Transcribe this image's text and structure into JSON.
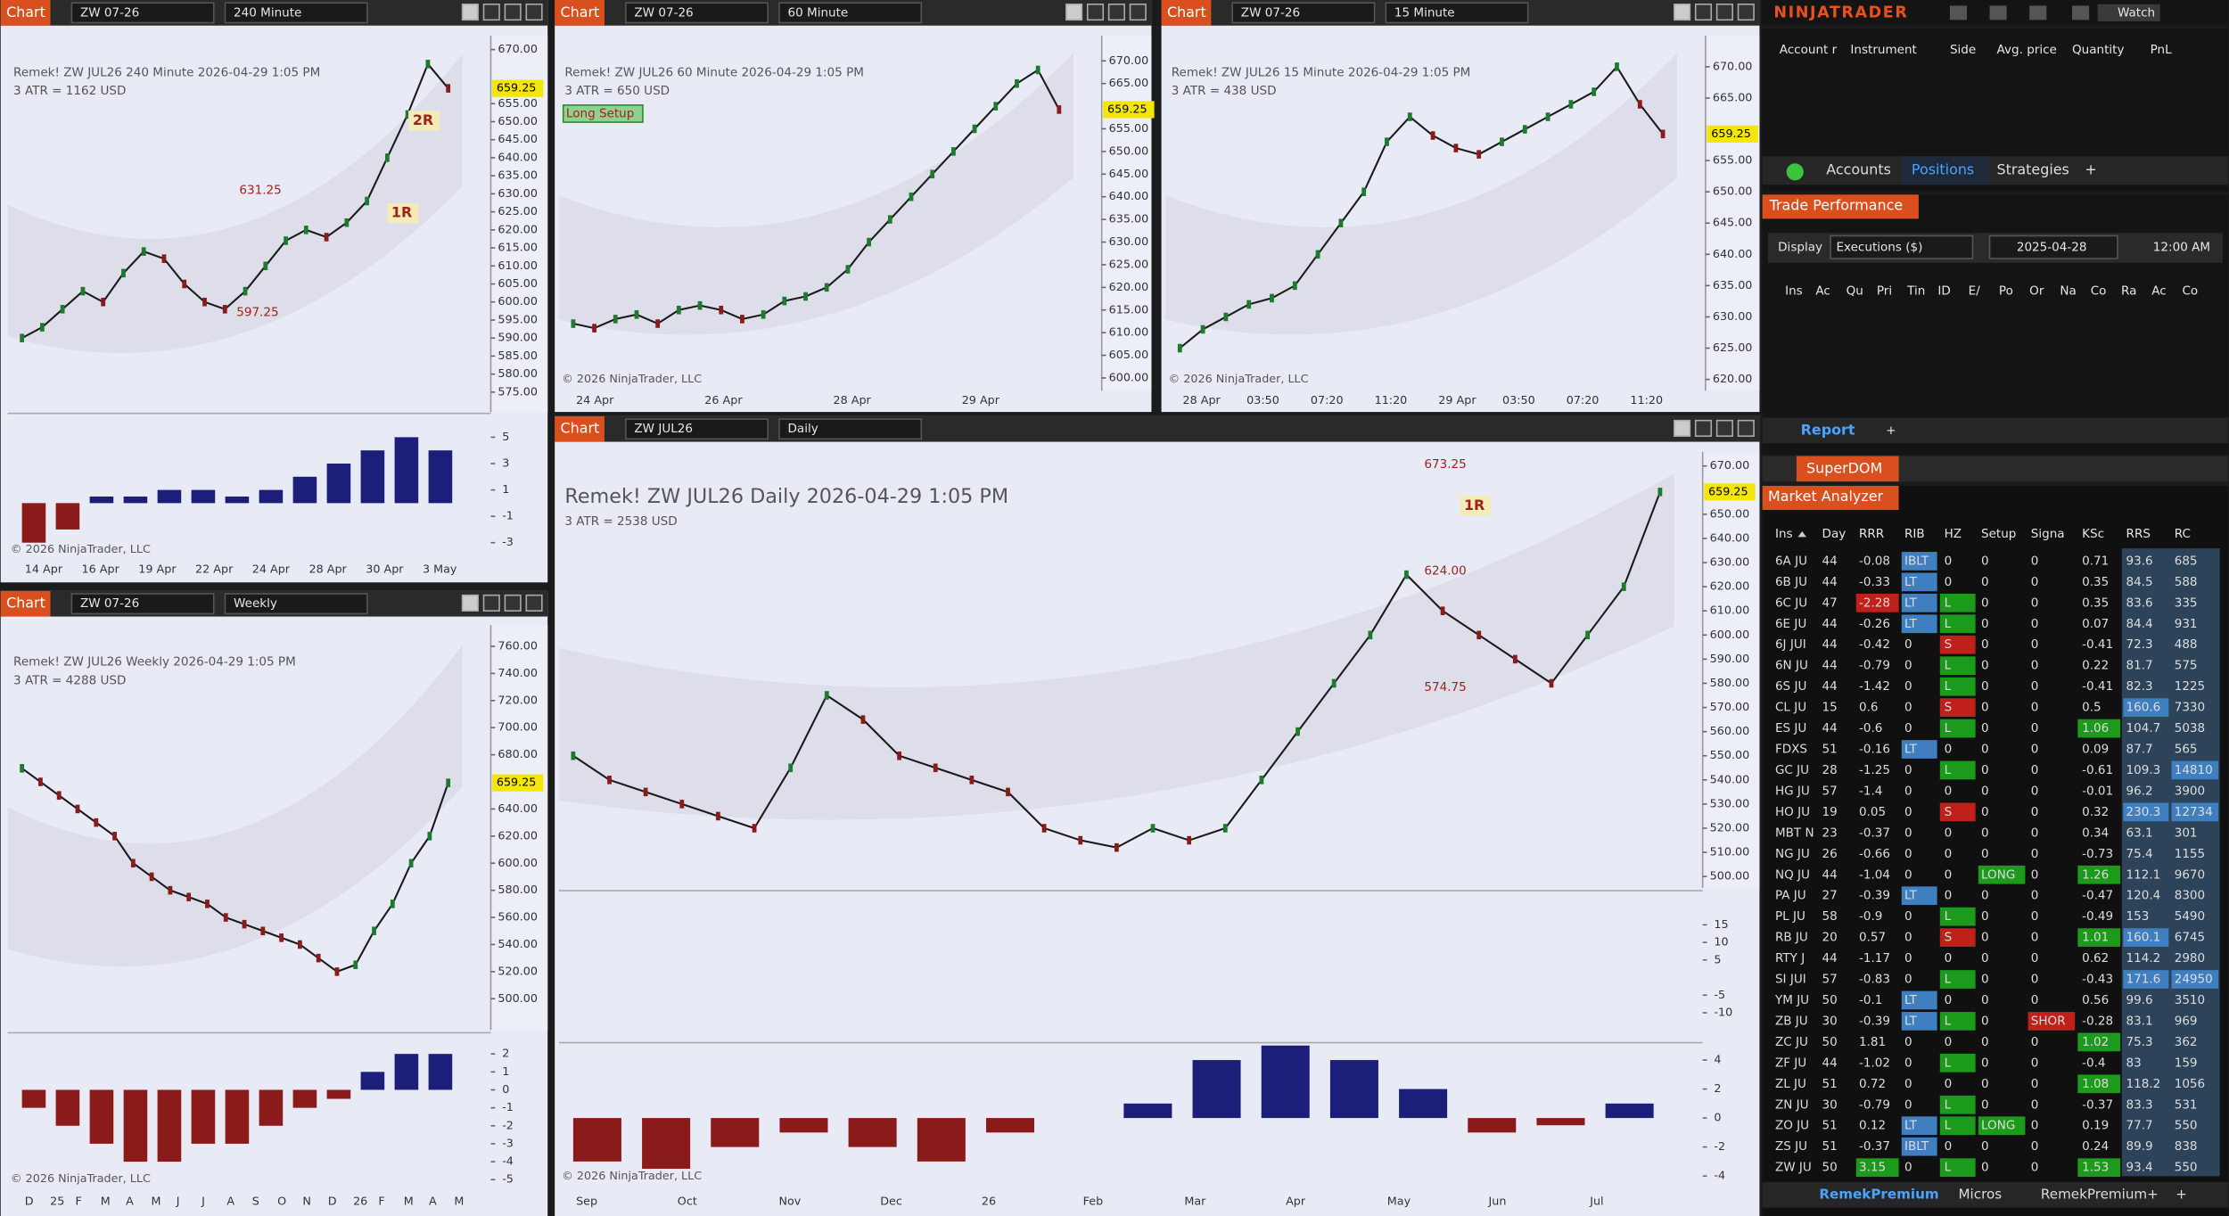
{
  "top_bar": {
    "brand": "NINJATRADER",
    "watch": "Watch"
  },
  "charts": [
    {
      "header": {
        "label": "Chart",
        "instrument": "ZW 07-26",
        "interval": "240 Minute"
      },
      "title": "Remek!  ZW JUL26  240 Minute  2026-04-29 1:05 PM",
      "atr": "3 ATR = 1162 USD",
      "copyright": "© 2026 NinjaTrader, LLC",
      "ylim": [
        569.5,
        673.9
      ],
      "yticks": [
        {
          "value": 670,
          "label": "670.00"
        },
        {
          "value": 655,
          "label": "655.00"
        },
        {
          "value": 650,
          "label": "650.00"
        },
        {
          "value": 645,
          "label": "645.00"
        },
        {
          "value": 640,
          "label": "640.00"
        },
        {
          "value": 635,
          "label": "635.00"
        },
        {
          "value": 630,
          "label": "630.00"
        },
        {
          "value": 625,
          "label": "625.00"
        },
        {
          "value": 620,
          "label": "620.00"
        },
        {
          "value": 615,
          "label": "615.00"
        },
        {
          "value": 610,
          "label": "610.00"
        },
        {
          "value": 605,
          "label": "605.00"
        },
        {
          "value": 600,
          "label": "600.00"
        },
        {
          "value": 595,
          "label": "595.00"
        },
        {
          "value": 590,
          "label": "590.00"
        },
        {
          "value": 585,
          "label": "585.00"
        },
        {
          "value": 580,
          "label": "580.00"
        },
        {
          "value": 575,
          "label": "575.00"
        }
      ],
      "last_price": {
        "value": 659.25,
        "label": "659.25"
      },
      "closes": [
        590,
        593,
        598,
        603,
        600,
        608,
        614,
        612,
        605,
        600,
        598,
        603,
        610,
        617,
        620,
        618,
        622,
        628,
        640,
        652,
        666,
        659.25
      ],
      "time_labels": [
        "14 Apr",
        "16 Apr",
        "19 Apr",
        "22 Apr",
        "24 Apr",
        "28 Apr",
        "30 Apr",
        "3 May"
      ],
      "annotations": [
        "2R",
        "1R",
        "631.25",
        "597.25"
      ],
      "indicator_ylim": [
        -4.4,
        6.7
      ],
      "indicator_ticks": [
        5,
        3,
        1,
        -1,
        -3
      ],
      "indicator_values": [
        -3,
        -2,
        0.5,
        0.5,
        1,
        1,
        0.5,
        1,
        2,
        3,
        4,
        5,
        4
      ]
    },
    {
      "header": {
        "label": "Chart",
        "instrument": "ZW 07-26",
        "interval": "60 Minute"
      },
      "title": "Remek!  ZW JUL26  60 Minute  2026-04-29 1:05 PM",
      "atr": "3 ATR = 650 USD",
      "copyright": "© 2026 NinjaTrader, LLC",
      "ylim": [
        597.2,
        675.6
      ],
      "yticks": [
        {
          "value": 670,
          "label": "670.00"
        },
        {
          "value": 665,
          "label": "665.00"
        },
        {
          "value": 655,
          "label": "655.00"
        },
        {
          "value": 650,
          "label": "650.00"
        },
        {
          "value": 645,
          "label": "645.00"
        },
        {
          "value": 640,
          "label": "640.00"
        },
        {
          "value": 635,
          "label": "635.00"
        },
        {
          "value": 630,
          "label": "630.00"
        },
        {
          "value": 625,
          "label": "625.00"
        },
        {
          "value": 620,
          "label": "620.00"
        },
        {
          "value": 615,
          "label": "615.00"
        },
        {
          "value": 610,
          "label": "610.00"
        },
        {
          "value": 605,
          "label": "605.00"
        },
        {
          "value": 600,
          "label": "600.00"
        }
      ],
      "last_price": {
        "value": 659.25,
        "label": "659.25"
      },
      "closes": [
        612,
        611,
        613,
        614,
        612,
        615,
        616,
        615,
        613,
        614,
        617,
        618,
        620,
        624,
        630,
        635,
        640,
        645,
        650,
        655,
        660,
        665,
        668,
        659.25
      ],
      "time_labels": [
        "24 Apr",
        "26 Apr",
        "28 Apr",
        "29 Apr"
      ],
      "annotations": [
        "Long Setup"
      ]
    },
    {
      "header": {
        "label": "Chart",
        "instrument": "ZW 07-26",
        "interval": "15 Minute"
      },
      "title": "Remek!  ZW JUL26  15 Minute  2026-04-29 1:05 PM",
      "atr": "3 ATR = 438 USD",
      "copyright": "© 2026 NinjaTrader, LLC",
      "ylim": [
        618.2,
        675
      ],
      "yticks": [
        {
          "value": 670,
          "label": "670.00"
        },
        {
          "value": 665,
          "label": "665.00"
        },
        {
          "value": 655,
          "label": "655.00"
        },
        {
          "value": 650,
          "label": "650.00"
        },
        {
          "value": 645,
          "label": "645.00"
        },
        {
          "value": 640,
          "label": "640.00"
        },
        {
          "value": 635,
          "label": "635.00"
        },
        {
          "value": 630,
          "label": "630.00"
        },
        {
          "value": 625,
          "label": "625.00"
        },
        {
          "value": 620,
          "label": "620.00"
        }
      ],
      "last_price": {
        "value": 659.25,
        "label": "659.25"
      },
      "closes": [
        625,
        628,
        630,
        632,
        633,
        635,
        640,
        645,
        650,
        658,
        662,
        659,
        657,
        656,
        658,
        660,
        662,
        664,
        666,
        670,
        664,
        659.25
      ],
      "time_labels": [
        "28 Apr",
        "03:50",
        "07:20",
        "11:20",
        "29 Apr",
        "03:50",
        "07:20",
        "11:20"
      ],
      "annotations": []
    },
    {
      "header": {
        "label": "Chart",
        "instrument": "ZW 07-26",
        "interval": "Weekly"
      },
      "title": "Remek!  ZW JUL26  Weekly  2026-04-29 1:05 PM",
      "atr": "3 ATR = 4288 USD",
      "copyright": "© 2026 NinjaTrader, LLC",
      "ylim": [
        477,
        775.7
      ],
      "yticks": [
        {
          "value": 760,
          "label": "760.00"
        },
        {
          "value": 740,
          "label": "740.00"
        },
        {
          "value": 720,
          "label": "720.00"
        },
        {
          "value": 700,
          "label": "700.00"
        },
        {
          "value": 680,
          "label": "680.00"
        },
        {
          "value": 640,
          "label": "640.00"
        },
        {
          "value": 620,
          "label": "620.00"
        },
        {
          "value": 600,
          "label": "600.00"
        },
        {
          "value": 580,
          "label": "580.00"
        },
        {
          "value": 560,
          "label": "560.00"
        },
        {
          "value": 540,
          "label": "540.00"
        },
        {
          "value": 520,
          "label": "520.00"
        },
        {
          "value": 500,
          "label": "500.00"
        }
      ],
      "last_price": {
        "value": 659.25,
        "label": "659.25"
      },
      "closes": [
        670,
        660,
        650,
        640,
        630,
        620,
        600,
        590,
        580,
        575,
        570,
        560,
        555,
        550,
        545,
        540,
        530,
        520,
        525,
        550,
        570,
        600,
        620,
        659.25
      ],
      "time_labels": [
        "D",
        "25",
        "F",
        "M",
        "A",
        "M",
        "J",
        "J",
        "A",
        "S",
        "O",
        "N",
        "D",
        "26",
        "F",
        "M",
        "A",
        "M"
      ],
      "annotations": [],
      "indicator_ylim": [
        -5.6,
        3.1
      ],
      "indicator_ticks": [
        2,
        1,
        0,
        -1,
        -2,
        -3,
        -4,
        -5
      ],
      "indicator_values": [
        -1,
        -2,
        -3,
        -4,
        -4,
        -3,
        -3,
        -2,
        -1,
        -0.5,
        1,
        2,
        2
      ]
    },
    {
      "header": {
        "label": "Chart",
        "instrument": "ZW JUL26",
        "interval": "Daily"
      },
      "title": "Remek!  ZW JUL26  Daily  2026-04-29 1:05 PM",
      "atr": "3 ATR = 2538 USD",
      "copyright": "© 2026 NinjaTrader, LLC",
      "ylim": [
        495.3,
        675.9
      ],
      "yticks": [
        {
          "value": 670,
          "label": "670.00"
        },
        {
          "value": 650,
          "label": "650.00"
        },
        {
          "value": 640,
          "label": "640.00"
        },
        {
          "value": 630,
          "label": "630.00"
        },
        {
          "value": 620,
          "label": "620.00"
        },
        {
          "value": 610,
          "label": "610.00"
        },
        {
          "value": 600,
          "label": "600.00"
        },
        {
          "value": 590,
          "label": "590.00"
        },
        {
          "value": 580,
          "label": "580.00"
        },
        {
          "value": 570,
          "label": "570.00"
        },
        {
          "value": 560,
          "label": "560.00"
        },
        {
          "value": 550,
          "label": "550.00"
        },
        {
          "value": 540,
          "label": "540.00"
        },
        {
          "value": 530,
          "label": "530.00"
        },
        {
          "value": 520,
          "label": "520.00"
        },
        {
          "value": 510,
          "label": "510.00"
        },
        {
          "value": 500,
          "label": "500.00"
        }
      ],
      "last_price": {
        "value": 659.25,
        "label": "659.25"
      },
      "closes": [
        550,
        540,
        535,
        530,
        525,
        520,
        545,
        575,
        565,
        550,
        545,
        540,
        535,
        520,
        515,
        512,
        520,
        515,
        520,
        540,
        560,
        580,
        600,
        625,
        610,
        600,
        590,
        580,
        600,
        620,
        659.25
      ],
      "time_labels": [
        "Sep",
        "Oct",
        "Nov",
        "Dec",
        "26",
        "Feb",
        "Mar",
        "Apr",
        "May",
        "Jun",
        "Jul"
      ],
      "annotations": [
        "673.25",
        "1R",
        "624.00",
        "574.75"
      ],
      "indicator_ylim": [
        -4.8,
        5.1
      ],
      "indicator_ticks": [
        4,
        2,
        0,
        -2,
        -4
      ],
      "indicator_values": [
        -3,
        -3.5,
        -2,
        -1,
        -2,
        -3,
        -1,
        0,
        1,
        4,
        5,
        4,
        2,
        -1,
        -0.5,
        1
      ],
      "oscillator_ylim": [
        -17.7,
        24.3
      ],
      "oscillator_ticks": [
        15,
        10,
        5,
        -5,
        -10
      ]
    }
  ],
  "positions": {
    "columns": [
      "Account r",
      "Instrument",
      "Side",
      "Avg. price",
      "Quantity",
      "PnL"
    ],
    "tabs": [
      "Accounts",
      "Positions",
      "Strategies",
      "+"
    ]
  },
  "trade_performance": {
    "title": "Trade Performance",
    "display_label": "Display",
    "display": "Executions ($)",
    "date": "2025-04-28",
    "time": "12:00 AM",
    "columns": [
      "Ins",
      "Ac",
      "Qu",
      "Pri",
      "Tin",
      "ID",
      "E/",
      "Po",
      "Or",
      "Na",
      "Co",
      "Ra",
      "Ac",
      "Co"
    ],
    "tabs": [
      "Report",
      "+"
    ]
  },
  "superdom": {
    "title": "SuperDOM"
  },
  "market_analyzer": {
    "title": "Market Analyzer",
    "columns": [
      "Ins",
      "Day",
      "RRR",
      "RIB",
      "HZ",
      "Setup",
      "Signa",
      "KSc",
      "RRS",
      "RC"
    ],
    "rows": [
      [
        "6A JU",
        "44",
        "-0.08",
        "IBLT",
        "0",
        "0",
        "0",
        "0.71",
        "93.6",
        "685"
      ],
      [
        "6B JU",
        "44",
        "-0.33",
        "LT",
        "0",
        "0",
        "0",
        "0.35",
        "84.5",
        "588"
      ],
      [
        "6C JU",
        "47",
        "-2.28",
        "LT",
        "L",
        "0",
        "0",
        "0.35",
        "83.6",
        "335"
      ],
      [
        "6E JU",
        "44",
        "-0.26",
        "LT",
        "L",
        "0",
        "0",
        "0.07",
        "84.4",
        "931"
      ],
      [
        "6J JUI",
        "44",
        "-0.42",
        "0",
        "S",
        "0",
        "0",
        "-0.41",
        "72.3",
        "488"
      ],
      [
        "6N JU",
        "44",
        "-0.79",
        "0",
        "L",
        "0",
        "0",
        "0.22",
        "81.7",
        "575"
      ],
      [
        "6S JU",
        "44",
        "-1.42",
        "0",
        "L",
        "0",
        "0",
        "-0.41",
        "82.3",
        "1225"
      ],
      [
        "CL JU",
        "15",
        "0.6",
        "0",
        "S",
        "0",
        "0",
        "0.5",
        "160.6",
        "7330"
      ],
      [
        "ES JU",
        "44",
        "-0.6",
        "0",
        "L",
        "0",
        "0",
        "1.06",
        "104.7",
        "5038"
      ],
      [
        "FDXS",
        "51",
        "-0.16",
        "LT",
        "0",
        "0",
        "0",
        "0.09",
        "87.7",
        "565"
      ],
      [
        "GC JU",
        "28",
        "-1.25",
        "0",
        "L",
        "0",
        "0",
        "-0.61",
        "109.3",
        "14810"
      ],
      [
        "HG JU",
        "57",
        "-1.4",
        "0",
        "0",
        "0",
        "0",
        "-0.01",
        "96.2",
        "3900"
      ],
      [
        "HO JU",
        "19",
        "0.05",
        "0",
        "S",
        "0",
        "0",
        "0.32",
        "230.3",
        "12734"
      ],
      [
        "MBT N",
        "23",
        "-0.37",
        "0",
        "0",
        "0",
        "0",
        "0.34",
        "63.1",
        "301"
      ],
      [
        "NG JU",
        "26",
        "-0.66",
        "0",
        "0",
        "0",
        "0",
        "-0.73",
        "75.4",
        "1155"
      ],
      [
        "NQ JU",
        "44",
        "-1.04",
        "0",
        "0",
        "LONG",
        "0",
        "1.26",
        "112.1",
        "9670"
      ],
      [
        "PA JU",
        "27",
        "-0.39",
        "LT",
        "0",
        "0",
        "0",
        "-0.47",
        "120.4",
        "8300"
      ],
      [
        "PL JU",
        "58",
        "-0.9",
        "0",
        "L",
        "0",
        "0",
        "-0.49",
        "153",
        "5490"
      ],
      [
        "RB JU",
        "20",
        "0.57",
        "0",
        "S",
        "0",
        "0",
        "1.01",
        "160.1",
        "6745"
      ],
      [
        "RTY J",
        "44",
        "-1.17",
        "0",
        "0",
        "0",
        "0",
        "0.62",
        "114.2",
        "2980"
      ],
      [
        "SI JUI",
        "57",
        "-0.83",
        "0",
        "L",
        "0",
        "0",
        "-0.43",
        "171.6",
        "24950"
      ],
      [
        "YM JU",
        "50",
        "-0.1",
        "LT",
        "0",
        "0",
        "0",
        "0.56",
        "99.6",
        "3510"
      ],
      [
        "ZB JU",
        "30",
        "-0.39",
        "LT",
        "L",
        "0",
        "SHOR",
        "-0.28",
        "83.1",
        "969"
      ],
      [
        "ZC JU",
        "50",
        "1.81",
        "0",
        "0",
        "0",
        "0",
        "1.02",
        "75.3",
        "362"
      ],
      [
        "ZF JU",
        "44",
        "-1.02",
        "0",
        "L",
        "0",
        "0",
        "-0.4",
        "83",
        "159"
      ],
      [
        "ZL JU",
        "51",
        "0.72",
        "0",
        "0",
        "0",
        "0",
        "1.08",
        "118.2",
        "1056"
      ],
      [
        "ZN JU",
        "30",
        "-0.79",
        "0",
        "L",
        "0",
        "0",
        "-0.37",
        "83.3",
        "531"
      ],
      [
        "ZO JU",
        "51",
        "0.12",
        "LT",
        "L",
        "LONG",
        "0",
        "0.19",
        "77.7",
        "550"
      ],
      [
        "ZS JU",
        "51",
        "-0.37",
        "IBLT",
        "0",
        "0",
        "0",
        "0.24",
        "89.9",
        "838"
      ],
      [
        "ZW JU",
        "50",
        "3.15",
        "0",
        "L",
        "0",
        "0",
        "1.53",
        "93.4",
        "550"
      ]
    ],
    "highlights": {
      "2.2": "#c0201a",
      "29.2": "#1c9a1c",
      "8.7": "#1c9a1c",
      "15.7": "#1c9a1c",
      "18.7": "#1c9a1c",
      "23.7": "#1c9a1c",
      "25.7": "#1c9a1c",
      "29.7": "#1c9a1c",
      "7.8": "#3f7fc0",
      "12.8": "#3f7fc0",
      "18.8": "#3f7fc0",
      "20.8": "#3f7fc0",
      "10.9": "#3f7fc0",
      "12.9": "#3f7fc0",
      "20.9": "#3f7fc0"
    },
    "tabs": [
      "RemekPremium",
      "Micros",
      "RemekPremium+",
      "+"
    ]
  }
}
